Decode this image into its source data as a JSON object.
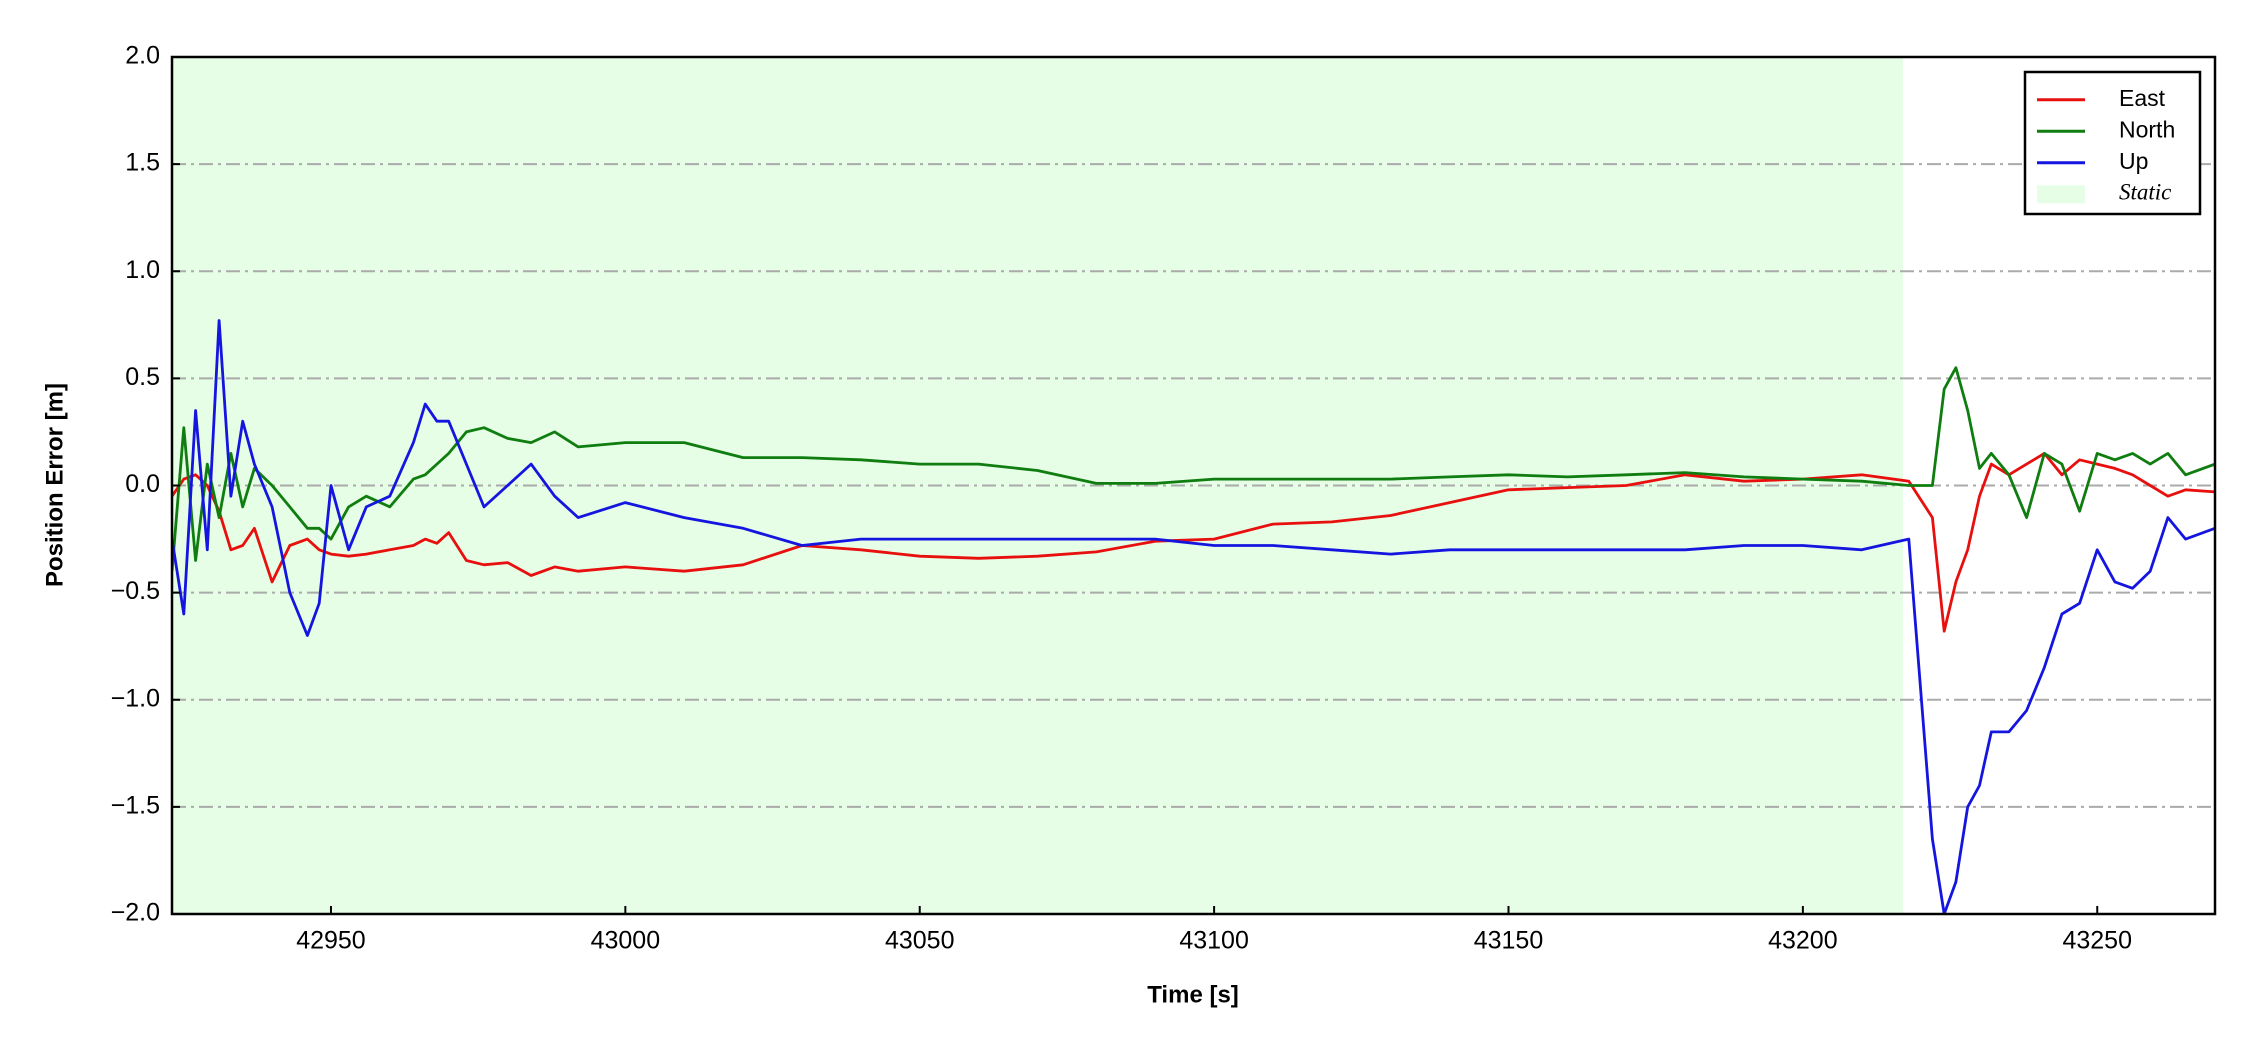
{
  "chart_data": {
    "type": "line",
    "xlabel": "Time [s]",
    "ylabel": "Position Error [m]",
    "x": [
      42923,
      42925,
      42927,
      42929,
      42931,
      42933,
      42935,
      42937,
      42940,
      42943,
      42946,
      42948,
      42950,
      42953,
      42956,
      42960,
      42964,
      42966,
      42968,
      42970,
      42973,
      42976,
      42980,
      42984,
      42988,
      42992,
      43000,
      43010,
      43020,
      43030,
      43040,
      43050,
      43060,
      43070,
      43080,
      43090,
      43100,
      43110,
      43120,
      43130,
      43140,
      43150,
      43160,
      43170,
      43180,
      43190,
      43200,
      43210,
      43218,
      43222,
      43224,
      43226,
      43228,
      43230,
      43232,
      43235,
      43238,
      43241,
      43244,
      43247,
      43250,
      43253,
      43256,
      43259,
      43262,
      43265,
      43270
    ],
    "series": [
      {
        "name": "East",
        "color": "#e8100e",
        "values": [
          -0.05,
          0.03,
          0.05,
          0.0,
          -0.12,
          -0.3,
          -0.28,
          -0.2,
          -0.45,
          -0.28,
          -0.25,
          -0.3,
          -0.32,
          -0.33,
          -0.32,
          -0.3,
          -0.28,
          -0.25,
          -0.27,
          -0.22,
          -0.35,
          -0.37,
          -0.36,
          -0.42,
          -0.38,
          -0.4,
          -0.38,
          -0.4,
          -0.37,
          -0.28,
          -0.3,
          -0.33,
          -0.34,
          -0.33,
          -0.31,
          -0.26,
          -0.25,
          -0.18,
          -0.17,
          -0.14,
          -0.08,
          -0.02,
          -0.01,
          0.0,
          0.05,
          0.02,
          0.03,
          0.05,
          0.02,
          -0.15,
          -0.68,
          -0.45,
          -0.3,
          -0.05,
          0.1,
          0.05,
          0.1,
          0.15,
          0.05,
          0.12,
          0.1,
          0.08,
          0.05,
          0.0,
          -0.05,
          -0.02,
          -0.03
        ]
      },
      {
        "name": "North",
        "color": "#0f7d0f",
        "values": [
          -0.4,
          0.27,
          -0.35,
          0.1,
          -0.15,
          0.15,
          -0.1,
          0.08,
          0.0,
          -0.1,
          -0.2,
          -0.2,
          -0.25,
          -0.1,
          -0.05,
          -0.1,
          0.03,
          0.05,
          0.1,
          0.15,
          0.25,
          0.27,
          0.22,
          0.2,
          0.25,
          0.18,
          0.2,
          0.2,
          0.13,
          0.13,
          0.12,
          0.1,
          0.1,
          0.07,
          0.01,
          0.01,
          0.03,
          0.03,
          0.03,
          0.03,
          0.04,
          0.05,
          0.04,
          0.05,
          0.06,
          0.04,
          0.03,
          0.02,
          0.0,
          0.0,
          0.45,
          0.55,
          0.35,
          0.08,
          0.15,
          0.05,
          -0.15,
          0.15,
          0.1,
          -0.12,
          0.15,
          0.12,
          0.15,
          0.1,
          0.15,
          0.05,
          0.1
        ]
      },
      {
        "name": "Up",
        "color": "#1515e0",
        "values": [
          -0.25,
          -0.6,
          0.35,
          -0.3,
          0.77,
          -0.05,
          0.3,
          0.1,
          -0.1,
          -0.5,
          -0.7,
          -0.55,
          0.0,
          -0.3,
          -0.1,
          -0.05,
          0.2,
          0.38,
          0.3,
          0.3,
          0.1,
          -0.1,
          0.0,
          0.1,
          -0.05,
          -0.15,
          -0.08,
          -0.15,
          -0.2,
          -0.28,
          -0.25,
          -0.25,
          -0.25,
          -0.25,
          -0.25,
          -0.25,
          -0.28,
          -0.28,
          -0.3,
          -0.32,
          -0.3,
          -0.3,
          -0.3,
          -0.3,
          -0.3,
          -0.28,
          -0.28,
          -0.3,
          -0.25,
          -1.65,
          -2.0,
          -1.85,
          -1.5,
          -1.4,
          -1.15,
          -1.15,
          -1.05,
          -0.85,
          -0.6,
          -0.55,
          -0.3,
          -0.45,
          -0.48,
          -0.4,
          -0.15,
          -0.25,
          -0.2
        ]
      }
    ],
    "span": {
      "label": "Static",
      "color": "#e6fde6",
      "xrange": [
        42923,
        43217
      ]
    },
    "xlim": [
      42923,
      43270
    ],
    "ylim": [
      -2.0,
      2.0
    ],
    "xticks": [
      42950,
      43000,
      43050,
      43100,
      43150,
      43200,
      43250
    ],
    "yticks": [
      {
        "value": 2.0,
        "label": "2.0"
      },
      {
        "value": 1.5,
        "label": "1.5"
      },
      {
        "value": 1.0,
        "label": "1.0"
      },
      {
        "value": 0.5,
        "label": "0.5"
      },
      {
        "value": 0.0,
        "label": "0.0"
      },
      {
        "value": -0.5,
        "label": "−0.5"
      },
      {
        "value": -1.0,
        "label": "−1.0"
      },
      {
        "value": -1.5,
        "label": "−1.5"
      },
      {
        "value": -2.0,
        "label": "−2.0"
      }
    ],
    "grid": true,
    "legend": "upper right"
  }
}
